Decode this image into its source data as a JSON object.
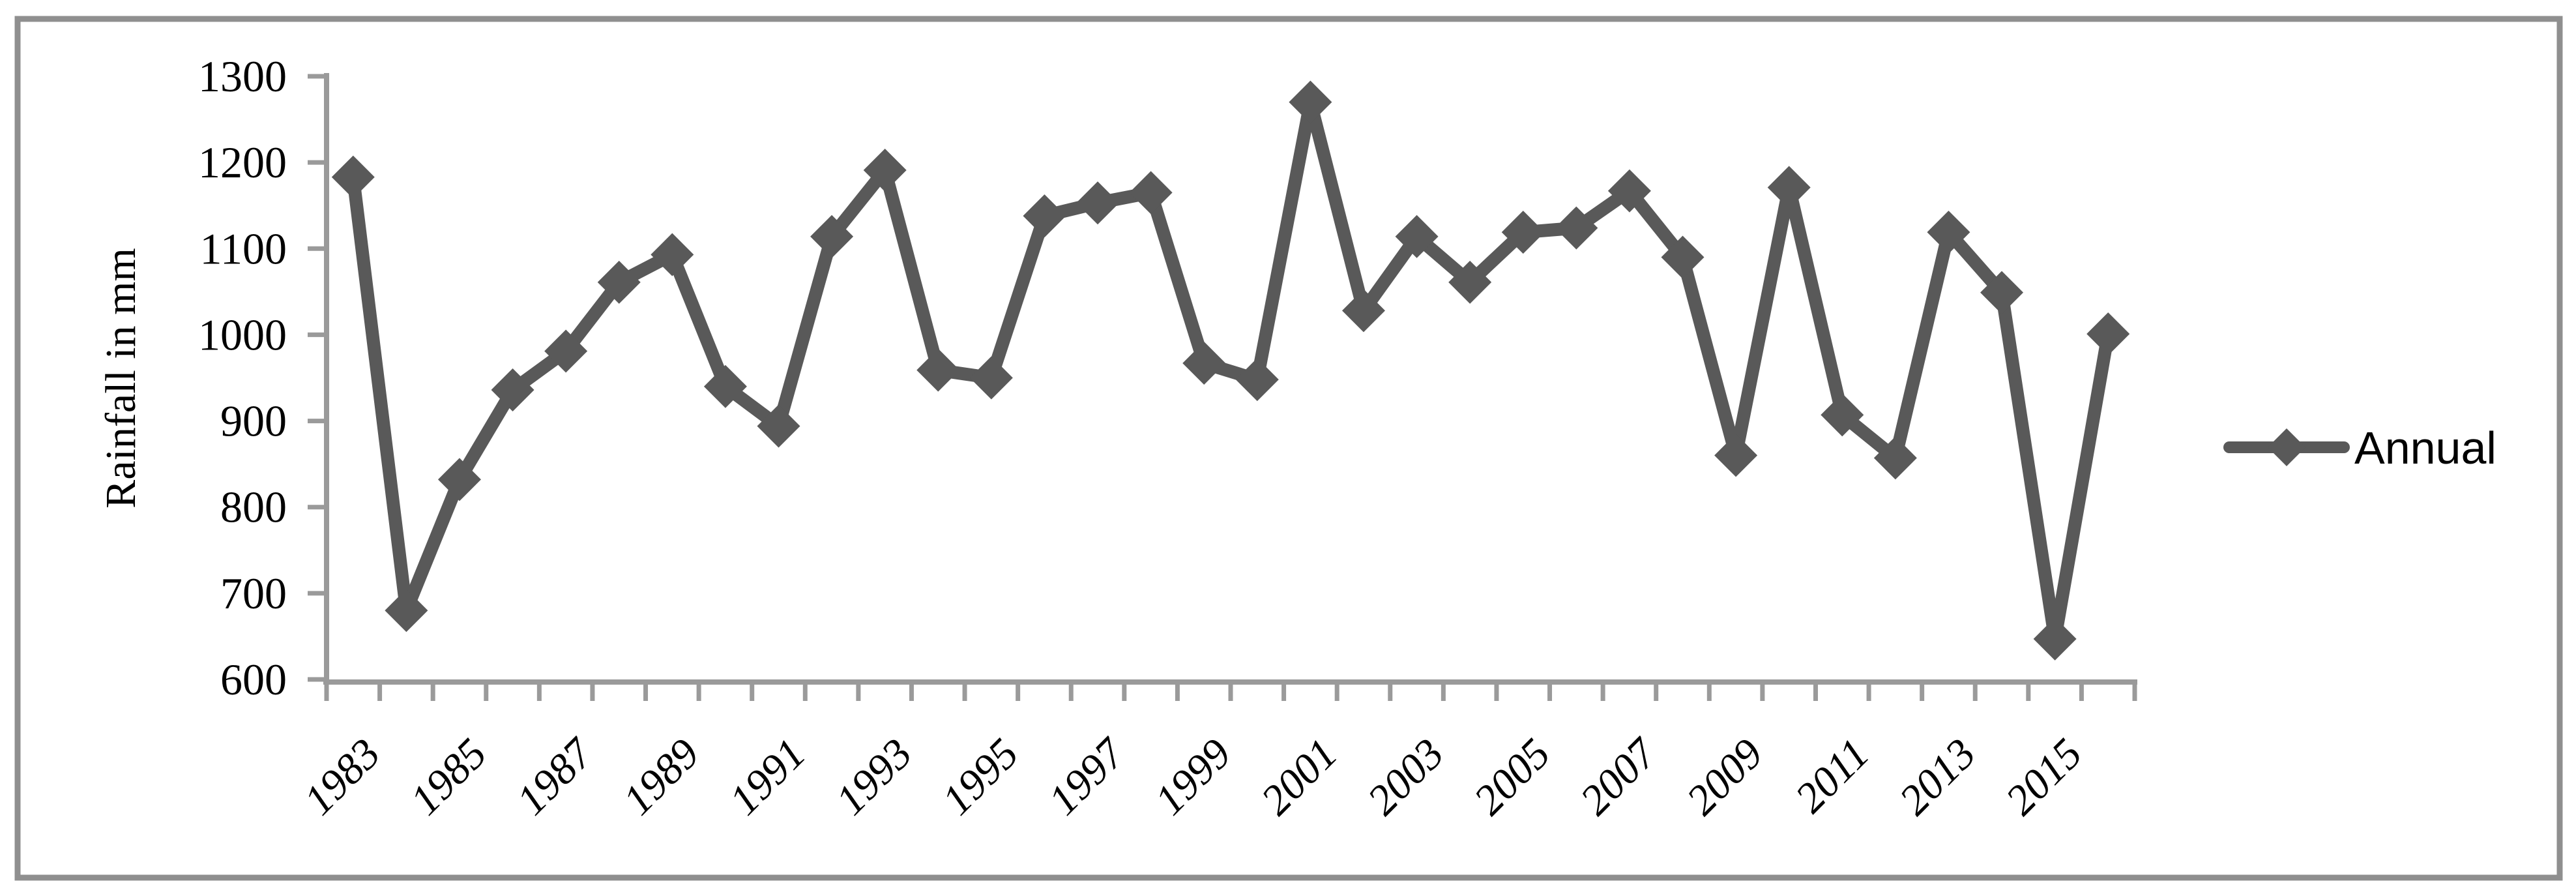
{
  "chart_data": {
    "type": "line",
    "title": "",
    "xlabel": "",
    "ylabel": "Rainfall in mm",
    "legend": {
      "position": "right",
      "entries": [
        "Annual"
      ]
    },
    "x": [
      1983,
      1984,
      1985,
      1986,
      1987,
      1988,
      1989,
      1990,
      1991,
      1992,
      1993,
      1994,
      1995,
      1996,
      1997,
      1998,
      1999,
      2000,
      2001,
      2002,
      2003,
      2004,
      2005,
      2006,
      2007,
      2008,
      2009,
      2010,
      2011,
      2012,
      2013,
      2014,
      2015,
      2016
    ],
    "series": [
      {
        "name": "Annual",
        "values": [
          1183,
          680,
          832,
          936,
          981,
          1061,
          1093,
          940,
          894,
          1114,
          1191,
          959,
          950,
          1138,
          1153,
          1165,
          967,
          948,
          1270,
          1028,
          1114,
          1061,
          1119,
          1124,
          1167,
          1090,
          860,
          1171,
          907,
          857,
          1119,
          1049,
          647,
          1001
        ]
      }
    ],
    "ylim": [
      600,
      1300
    ],
    "yticks": [
      600,
      700,
      800,
      900,
      1000,
      1100,
      1200,
      1300
    ],
    "xtick_labels": [
      "1983",
      "1985",
      "1987",
      "1989",
      "1991",
      "1993",
      "1995",
      "1997",
      "1999",
      "2001",
      "2003",
      "2005",
      "2007",
      "2009",
      "2011",
      "2013",
      "2015"
    ],
    "xtick_label_every": 2,
    "grid": false,
    "marker": "diamond",
    "colors": {
      "series": "#595959",
      "axis": "#9a9a9a",
      "frame": "#8f8f8f",
      "text": "#000000",
      "background": "#ffffff"
    }
  }
}
